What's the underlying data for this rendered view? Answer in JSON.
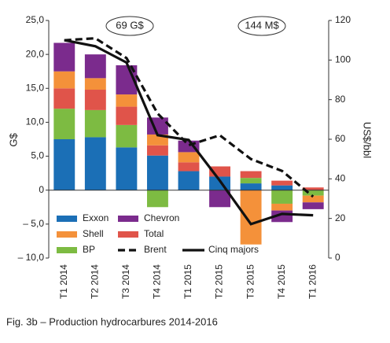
{
  "chart_data": {
    "type": "bar",
    "stacked": true,
    "caption": "Fig. 3b – Production hydrocarbures 2014-2016",
    "y_label": "G$",
    "y2_label": "US$/bbl",
    "annotations": [
      "69 G$",
      "144 M$"
    ],
    "categories": [
      "T1 2014",
      "T2 2014",
      "T3 2014",
      "T4 2014",
      "T1 2015",
      "T2 2015",
      "T3 2015",
      "T4 2015",
      "T1 2016"
    ],
    "series": [
      {
        "name": "Exxon",
        "type": "bar",
        "color": "#1b6fb6",
        "values": [
          7.5,
          7.8,
          6.3,
          5.1,
          2.8,
          2.0,
          1.0,
          0.7,
          0
        ]
      },
      {
        "name": "BP",
        "type": "bar",
        "color": "#7dbb42",
        "values": [
          4.5,
          4.0,
          3.3,
          -2.5,
          0,
          0,
          0.8,
          -2.0,
          -0.8
        ]
      },
      {
        "name": "Total",
        "type": "bar",
        "color": "#e0544a",
        "values": [
          3.0,
          3.0,
          2.7,
          1.5,
          1.3,
          1.5,
          1.0,
          0.7,
          0.4
        ]
      },
      {
        "name": "Shell",
        "type": "bar",
        "color": "#f4913a",
        "values": [
          2.5,
          1.7,
          1.8,
          1.6,
          1.5,
          0,
          -8.0,
          -1.0,
          -1.0
        ]
      },
      {
        "name": "Chevron",
        "type": "bar",
        "color": "#7b2b8d",
        "values": [
          4.2,
          3.5,
          4.3,
          2.5,
          1.7,
          -2.5,
          0,
          -1.7,
          -1.0
        ]
      },
      {
        "name": "Brent",
        "type": "line",
        "dashed": true,
        "axis": "y2",
        "color": "#111111",
        "values": [
          110,
          111,
          101,
          73,
          57,
          62,
          50,
          44,
          31
        ]
      },
      {
        "name": "Cinq majors",
        "type": "line",
        "dashed": false,
        "color": "#111111",
        "values": [
          22.1,
          21.2,
          18.8,
          8.1,
          7.4,
          1.4,
          -5.0,
          -3.5,
          -3.7
        ]
      }
    ],
    "ylim": [
      -10,
      25
    ],
    "yticks": [
      {
        "value": -10,
        "label": "– 10,0"
      },
      {
        "value": -5,
        "label": "– 5,0"
      },
      0,
      {
        "value": 5,
        "label": "5,0"
      },
      {
        "value": 10,
        "label": "10,0"
      },
      {
        "value": 15,
        "label": "15,0"
      },
      {
        "value": 20,
        "label": "20,0"
      },
      {
        "value": 25,
        "label": "25,0"
      }
    ],
    "y2lim": [
      0,
      120
    ],
    "y2ticks": [
      0,
      20,
      40,
      60,
      80,
      100,
      120
    ],
    "grid": false,
    "legend_position": "lower left"
  }
}
